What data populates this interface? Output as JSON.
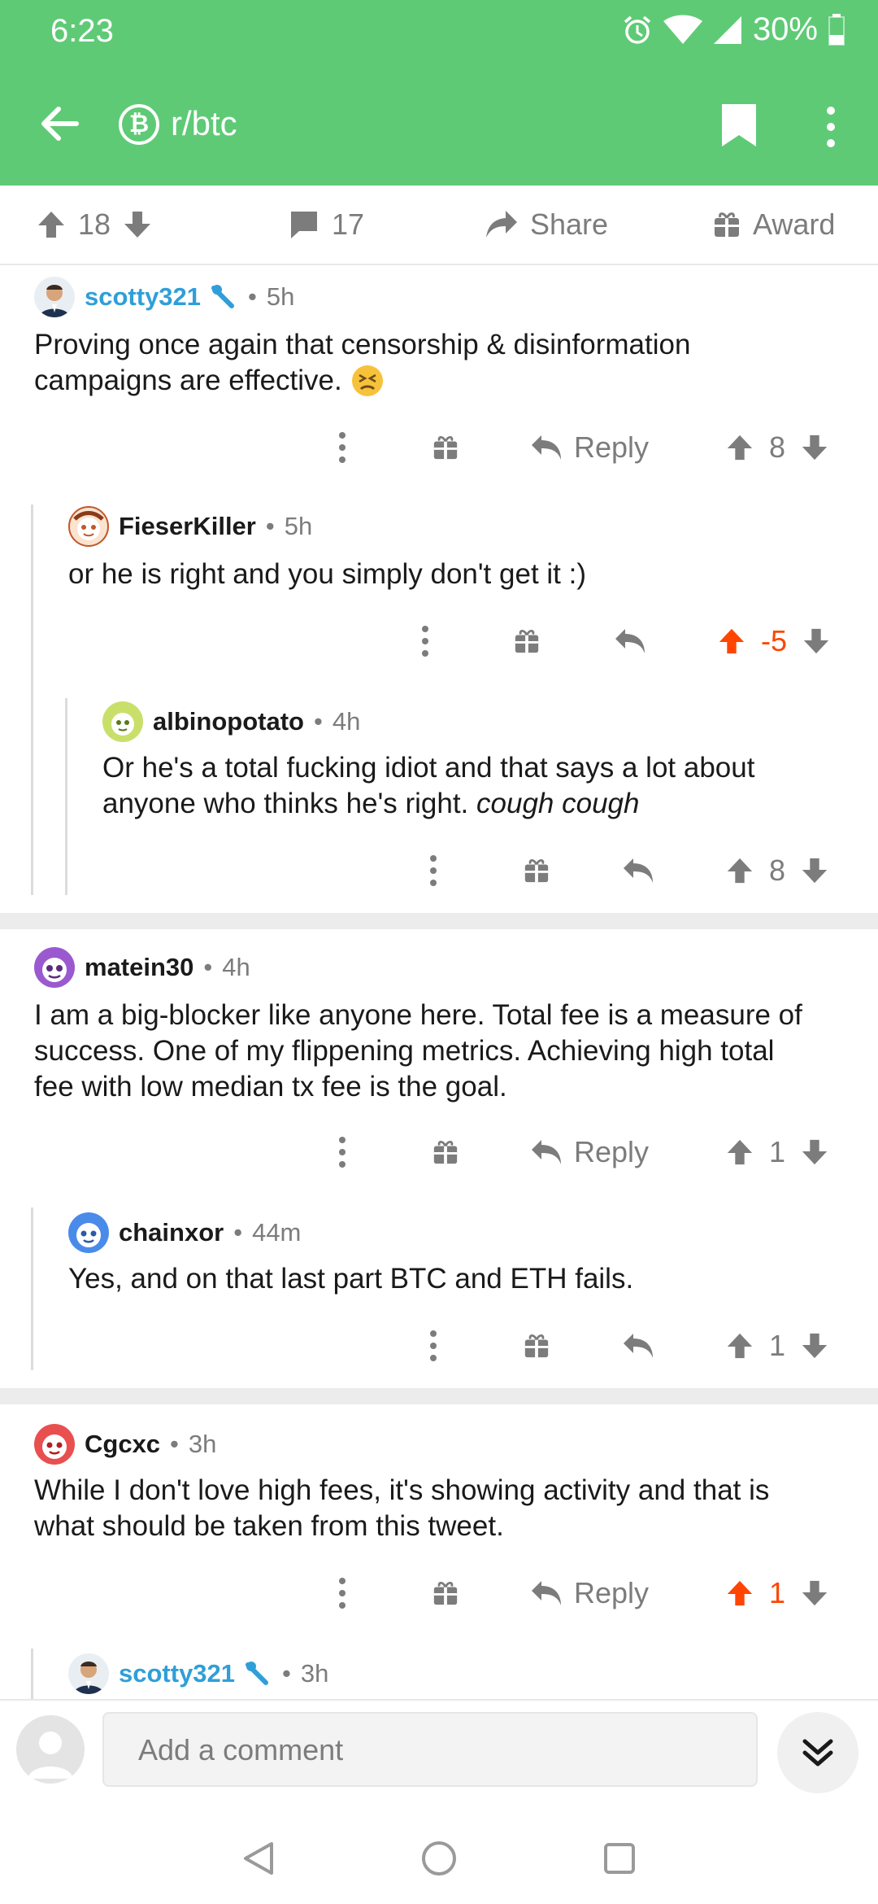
{
  "status_bar": {
    "time": "6:23",
    "battery": "30%"
  },
  "toolbar": {
    "subreddit": "r/btc"
  },
  "post_actions": {
    "upvotes": "18",
    "comments": "17",
    "share_label": "Share",
    "award_label": "Award"
  },
  "comments": [
    {
      "user": "scotty321",
      "time": "5h",
      "body_1": "Proving once again that censorship & disinformation",
      "body_2": "campaigns are effective.",
      "reply_label": "Reply",
      "score": "8"
    },
    {
      "user": "FieserKiller",
      "time": "5h",
      "body_1": "or he is right and you simply don't get it :)",
      "score": "-5"
    },
    {
      "user": "albinopotato",
      "time": "4h",
      "body_1": "Or he's a total fucking idiot and that says a lot about",
      "body_2": "anyone who thinks he's right.",
      "body_2_italic": "cough cough",
      "score": "8"
    },
    {
      "user": "matein30",
      "time": "4h",
      "body_1": "I am a big-blocker like anyone here. Total fee is a measure of",
      "body_2": "success. One of my flippening metrics. Achieving high total",
      "body_3": "fee with low median tx fee is the goal.",
      "reply_label": "Reply",
      "score": "1"
    },
    {
      "user": "chainxor",
      "time": "44m",
      "body_1": "Yes, and on that last part BTC and ETH fails.",
      "score": "1"
    },
    {
      "user": "Cgcxc",
      "time": "3h",
      "body_1": "While I don't love high fees, it's showing activity and that is",
      "body_2": "what should be taken from this tweet.",
      "reply_label": "Reply",
      "score": "1"
    },
    {
      "user": "scotty321",
      "time": "3h"
    }
  ],
  "composer": {
    "placeholder": "Add a comment"
  },
  "colors": {
    "header": "#5fca76",
    "mod_blue": "#2f9fd8",
    "upvote_orange": "#ff4500",
    "meta_gray": "#7c7c7c"
  }
}
